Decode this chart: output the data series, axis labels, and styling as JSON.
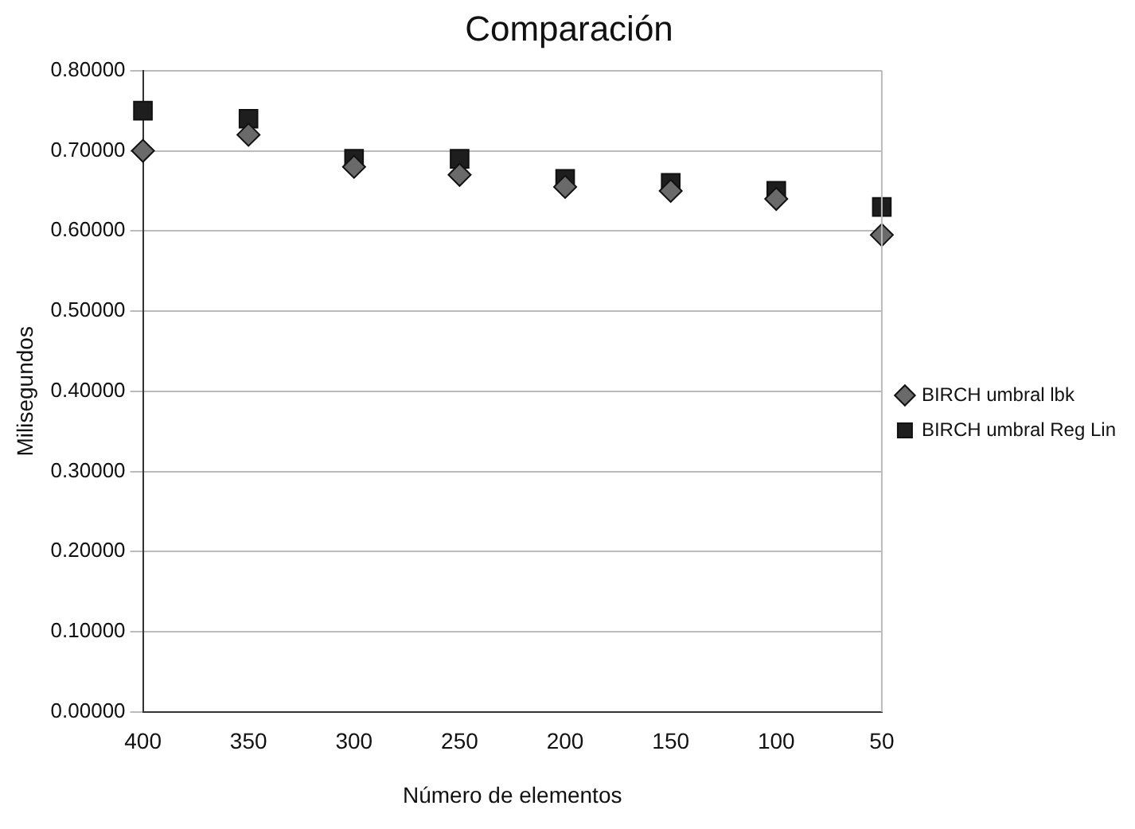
{
  "chart_data": {
    "type": "scatter",
    "title": "Comparación",
    "xlabel": "Número de elementos",
    "ylabel": "Milisegundos",
    "categories": [
      "400",
      "350",
      "300",
      "250",
      "200",
      "150",
      "100",
      "50"
    ],
    "series": [
      {
        "name": "BIRCH umbral Reg Lin",
        "color": "#1e1e1e",
        "marker": "square",
        "values": [
          0.75,
          0.74,
          0.69,
          0.69,
          0.665,
          0.66,
          0.65,
          0.63
        ]
      },
      {
        "name": "BIRCH umbral lbk",
        "color": "#6a6a6a",
        "marker": "diamond",
        "values": [
          0.7,
          0.72,
          0.68,
          0.67,
          0.655,
          0.65,
          0.64,
          0.595
        ]
      }
    ],
    "ylim": [
      0,
      0.8
    ],
    "yticks": [
      {
        "value": 0,
        "label": "0.00000"
      },
      {
        "value": 0.1,
        "label": "0.10000"
      },
      {
        "value": 0.2,
        "label": "0.20000"
      },
      {
        "value": 0.3,
        "label": "0.30000"
      },
      {
        "value": 0.4,
        "label": "0.40000"
      },
      {
        "value": 0.5,
        "label": "0.50000"
      },
      {
        "value": 0.6,
        "label": "0.60000"
      },
      {
        "value": 0.7,
        "label": "0.70000"
      },
      {
        "value": 0.8,
        "label": "0.80000"
      }
    ],
    "grid": "y",
    "legend": "right"
  }
}
